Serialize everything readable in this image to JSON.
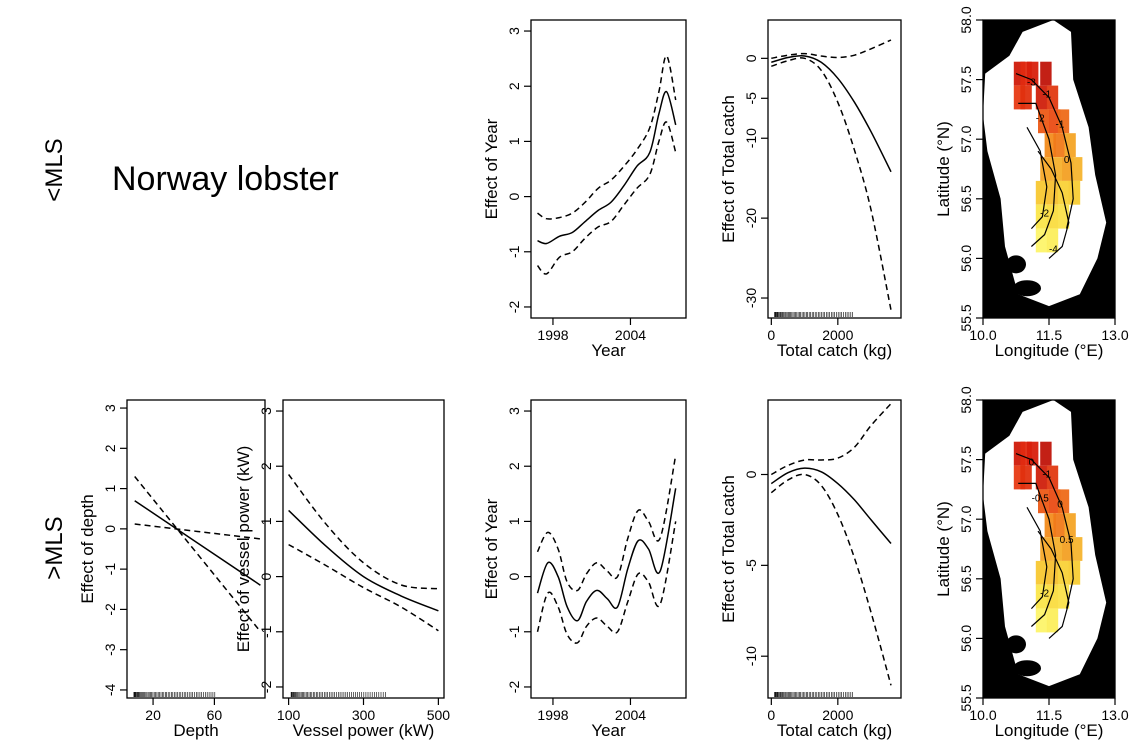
{
  "figure": {
    "species_title": "Norway lobster",
    "row_labels": [
      "<MLS",
      ">MLS"
    ]
  },
  "chart_data": [
    {
      "type": "line",
      "row": 0,
      "col": 2,
      "xlabel": "Year",
      "ylabel": "Effect of Year",
      "xlim": [
        1996.3,
        2008.3
      ],
      "ylim": [
        -2.2,
        3.2
      ],
      "xticks": [
        1998,
        2004
      ],
      "yticks": [
        -2,
        -1,
        0,
        1,
        2,
        3
      ],
      "series": [
        {
          "style": "solid",
          "x": [
            1996.8,
            1997.5,
            1998.5,
            1999.5,
            2000.5,
            2001.5,
            2002.5,
            2003.5,
            2004.5,
            2005.5,
            2006.2,
            2006.8,
            2007.5
          ],
          "values": [
            -0.8,
            -0.85,
            -0.72,
            -0.65,
            -0.45,
            -0.25,
            -0.1,
            0.2,
            0.55,
            0.8,
            1.5,
            1.9,
            1.3
          ]
        },
        {
          "style": "dashed",
          "x": [
            1996.8,
            1997.5,
            1998.5,
            1999.5,
            2000.5,
            2001.5,
            2002.5,
            2003.5,
            2004.5,
            2005.5,
            2006.2,
            2006.8,
            2007.5
          ],
          "values": [
            -0.3,
            -0.4,
            -0.38,
            -0.3,
            -0.1,
            0.15,
            0.3,
            0.55,
            0.85,
            1.25,
            1.9,
            2.55,
            1.75
          ]
        },
        {
          "style": "dashed",
          "x": [
            1996.8,
            1997.5,
            1998.5,
            1999.5,
            2000.5,
            2001.5,
            2002.5,
            2003.5,
            2004.5,
            2005.5,
            2006.2,
            2006.8,
            2007.5
          ],
          "values": [
            -1.25,
            -1.4,
            -1.1,
            -1.0,
            -0.75,
            -0.55,
            -0.45,
            -0.15,
            0.15,
            0.4,
            1.0,
            1.35,
            0.8
          ]
        }
      ]
    },
    {
      "type": "line",
      "row": 0,
      "col": 3,
      "xlabel": "Total catch (kg)",
      "ylabel": "Effect of Total catch",
      "xlim": [
        -100,
        3900
      ],
      "ylim": [
        -32.5,
        4.8
      ],
      "xticks": [
        0,
        2000
      ],
      "yticks": [
        0,
        -5,
        -10,
        -20,
        -30
      ],
      "rug": true,
      "series": [
        {
          "style": "solid",
          "x": [
            0,
            500,
            1000,
            1500,
            2000,
            2500,
            3000,
            3600
          ],
          "values": [
            -0.5,
            0.1,
            0.3,
            -0.5,
            -2.5,
            -5.5,
            -9.2,
            -14.2
          ]
        },
        {
          "style": "dashed",
          "x": [
            0,
            500,
            1000,
            1500,
            2000,
            2500,
            3000,
            3600
          ],
          "values": [
            0,
            0.4,
            0.6,
            0.3,
            0.1,
            0.4,
            1.2,
            2.3
          ]
        },
        {
          "style": "dashed",
          "x": [
            0,
            500,
            1000,
            1500,
            2000,
            2500,
            3000,
            3600
          ],
          "values": [
            -1,
            -0.3,
            0,
            -1.5,
            -5.5,
            -11.5,
            -19,
            -31.5
          ]
        }
      ]
    },
    {
      "type": "heatmap",
      "row": 0,
      "col": 4,
      "xlabel": "Longitude (°E)",
      "ylabel": "Latitude (°N)",
      "xlim": [
        10,
        13
      ],
      "ylim": [
        55.5,
        58
      ],
      "xticks": [
        10.0,
        11.5,
        13.0
      ],
      "yticks": [
        55.5,
        56.0,
        56.5,
        57.0,
        57.5,
        58.0
      ],
      "contour_labels": [
        "-3",
        "-1",
        "-2",
        "-1",
        "0",
        "-2",
        "-4"
      ]
    },
    {
      "type": "line",
      "row": 1,
      "col": 0,
      "xlabel": "Depth",
      "ylabel": "Effect of depth",
      "xlim": [
        3,
        93
      ],
      "ylim": [
        -4.2,
        3.2
      ],
      "xticks": [
        20,
        60
      ],
      "yticks": [
        -4,
        -3,
        -2,
        -1,
        0,
        1,
        2,
        3
      ],
      "rug": true,
      "series": [
        {
          "style": "solid",
          "x": [
            8,
            90
          ],
          "values": [
            0.7,
            -1.4
          ]
        },
        {
          "style": "dashed",
          "x": [
            8,
            90
          ],
          "values": [
            1.3,
            -2.55
          ]
        },
        {
          "style": "dashed",
          "x": [
            8,
            90
          ],
          "values": [
            0.12,
            -0.25
          ]
        }
      ]
    },
    {
      "type": "line",
      "row": 1,
      "col": 1,
      "xlabel": "Vessel power (kW)",
      "ylabel": "Effect of vessel power (kW)",
      "xlim": [
        85,
        515
      ],
      "ylim": [
        -2.2,
        3.2
      ],
      "xticks": [
        100,
        300,
        500
      ],
      "yticks": [
        -2,
        -1,
        0,
        1,
        2,
        3
      ],
      "rug": true,
      "series": [
        {
          "style": "solid",
          "x": [
            100,
            200,
            300,
            400,
            500
          ],
          "values": [
            1.2,
            0.55,
            0.0,
            -0.35,
            -0.62
          ]
        },
        {
          "style": "dashed",
          "x": [
            100,
            200,
            300,
            400,
            500
          ],
          "values": [
            1.85,
            0.95,
            0.25,
            -0.15,
            -0.22
          ]
        },
        {
          "style": "dashed",
          "x": [
            100,
            200,
            300,
            400,
            500
          ],
          "values": [
            0.58,
            0.2,
            -0.2,
            -0.55,
            -0.98
          ]
        }
      ]
    },
    {
      "type": "line",
      "row": 1,
      "col": 2,
      "xlabel": "Year",
      "ylabel": "Effect of Year",
      "xlim": [
        1996.3,
        2008.3
      ],
      "ylim": [
        -2.2,
        3.2
      ],
      "xticks": [
        1998,
        2004
      ],
      "yticks": [
        -2,
        -1,
        0,
        1,
        2,
        3
      ],
      "series": [
        {
          "style": "solid",
          "x": [
            1996.8,
            1997.6,
            1998.4,
            1999.1,
            1999.9,
            2000.6,
            2001.4,
            2002.2,
            2003.0,
            2003.8,
            2004.6,
            2005.4,
            2006.3,
            2007.5
          ],
          "values": [
            -0.3,
            0.25,
            0.0,
            -0.55,
            -0.8,
            -0.45,
            -0.25,
            -0.4,
            -0.55,
            0.15,
            0.65,
            0.5,
            0.1,
            1.6
          ]
        },
        {
          "style": "dashed",
          "x": [
            1996.8,
            1997.6,
            1998.4,
            1999.1,
            1999.9,
            2000.6,
            2001.4,
            2002.2,
            2003.0,
            2003.8,
            2004.6,
            2005.4,
            2006.3,
            2007.5
          ],
          "values": [
            0.45,
            0.8,
            0.5,
            -0.1,
            -0.25,
            0.05,
            0.25,
            0.1,
            0.0,
            0.7,
            1.2,
            1.0,
            0.7,
            2.2
          ]
        },
        {
          "style": "dashed",
          "x": [
            1996.8,
            1997.6,
            1998.4,
            1999.1,
            1999.9,
            2000.6,
            2001.4,
            2002.2,
            2003.0,
            2003.8,
            2004.6,
            2005.4,
            2006.3,
            2007.5
          ],
          "values": [
            -1.0,
            -0.3,
            -0.55,
            -1.05,
            -1.2,
            -0.9,
            -0.75,
            -0.9,
            -1.0,
            -0.45,
            0.05,
            -0.1,
            -0.5,
            1.0
          ]
        }
      ]
    },
    {
      "type": "line",
      "row": 1,
      "col": 3,
      "xlabel": "Total catch (kg)",
      "ylabel": "Effect of Total catch",
      "xlim": [
        -100,
        3900
      ],
      "ylim": [
        -12.3,
        4.1
      ],
      "xticks": [
        0,
        2000
      ],
      "yticks": [
        0,
        -5,
        -10
      ],
      "rug": true,
      "series": [
        {
          "style": "solid",
          "x": [
            0,
            500,
            1000,
            1500,
            2000,
            2500,
            3000,
            3600
          ],
          "values": [
            -0.5,
            0.1,
            0.35,
            0.15,
            -0.5,
            -1.4,
            -2.5,
            -3.8
          ]
        },
        {
          "style": "dashed",
          "x": [
            0,
            500,
            1000,
            1500,
            2000,
            2500,
            3000,
            3600
          ],
          "values": [
            0,
            0.5,
            0.8,
            0.8,
            0.9,
            1.5,
            2.7,
            3.9
          ]
        },
        {
          "style": "dashed",
          "x": [
            0,
            500,
            1000,
            1500,
            2000,
            2500,
            3000,
            3600
          ],
          "values": [
            -1.0,
            -0.3,
            0.0,
            -0.6,
            -2.2,
            -4.6,
            -7.6,
            -11.6
          ]
        }
      ]
    },
    {
      "type": "heatmap",
      "row": 1,
      "col": 4,
      "xlabel": "Longitude (°E)",
      "ylabel": "Latitude (°N)",
      "xlim": [
        10,
        13
      ],
      "ylim": [
        55.5,
        58
      ],
      "xticks": [
        10.0,
        11.5,
        13.0
      ],
      "yticks": [
        55.5,
        56.0,
        56.5,
        57.0,
        57.5,
        58.0
      ],
      "contour_labels": [
        "0",
        "-1",
        "-0.5",
        "0",
        "0.5",
        "-2"
      ]
    }
  ]
}
